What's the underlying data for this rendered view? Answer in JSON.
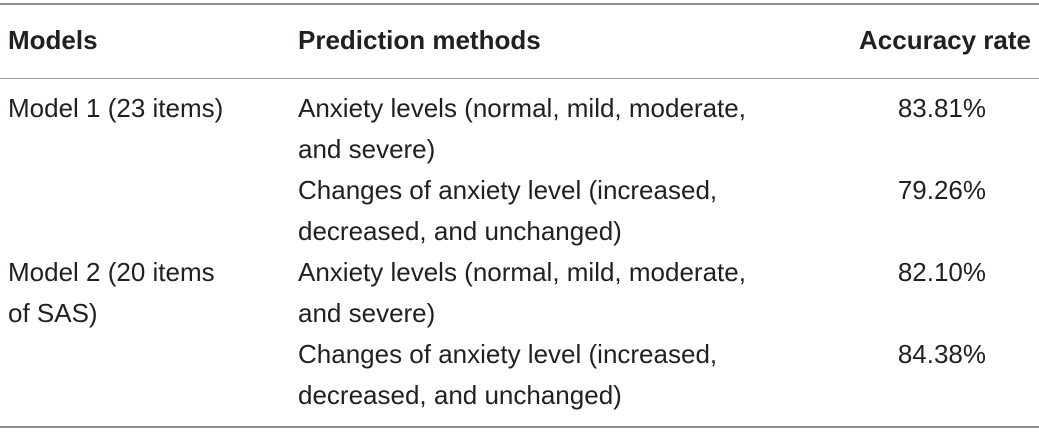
{
  "table": {
    "headers": {
      "models": "Models",
      "methods": "Prediction methods",
      "accuracy": "Accuracy rate"
    },
    "rows": [
      {
        "model_line1": "Model 1 (23 items)",
        "model_line2": "",
        "method_line1": "Anxiety levels (normal, mild, moderate,",
        "method_line2": "and severe)",
        "accuracy": "83.81%"
      },
      {
        "model_line1": "",
        "model_line2": "",
        "method_line1": "Changes of anxiety level (increased,",
        "method_line2": "decreased, and unchanged)",
        "accuracy": "79.26%"
      },
      {
        "model_line1": "Model 2 (20 items",
        "model_line2": "of SAS)",
        "method_line1": "Anxiety levels (normal, mild, moderate,",
        "method_line2": "and severe)",
        "accuracy": "82.10%"
      },
      {
        "model_line1": "",
        "model_line2": "",
        "method_line1": "Changes of anxiety level (increased,",
        "method_line2": "decreased, and unchanged)",
        "accuracy": "84.38%"
      }
    ]
  }
}
